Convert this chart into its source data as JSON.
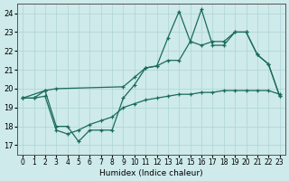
{
  "xlabel": "Humidex (Indice chaleur)",
  "background_color": "#ceeaea",
  "grid_color": "#aed4d4",
  "line_color": "#1a6b5a",
  "xlim": [
    -0.5,
    23.5
  ],
  "ylim": [
    16.5,
    24.5
  ],
  "xticks": [
    0,
    1,
    2,
    3,
    4,
    5,
    6,
    7,
    8,
    9,
    10,
    11,
    12,
    13,
    14,
    15,
    16,
    17,
    18,
    19,
    20,
    21,
    22,
    23
  ],
  "yticks": [
    17,
    18,
    19,
    20,
    21,
    22,
    23,
    24
  ],
  "line_jagged_x": [
    0,
    1,
    2,
    3,
    4,
    5,
    6,
    7,
    8,
    9,
    10,
    11,
    12,
    13,
    14,
    15,
    16,
    17,
    18,
    19,
    20,
    21,
    22,
    23
  ],
  "line_jagged_y": [
    19.5,
    19.5,
    19.9,
    18.0,
    18.0,
    17.2,
    17.8,
    17.8,
    17.8,
    19.5,
    20.2,
    21.1,
    21.2,
    22.7,
    24.1,
    22.5,
    24.2,
    22.3,
    22.3,
    23.0,
    23.0,
    21.8,
    21.3,
    19.6
  ],
  "line_mid_x": [
    0,
    2,
    3,
    9,
    10,
    11,
    12,
    13,
    14,
    15,
    16,
    17,
    18,
    19,
    20,
    21,
    22,
    23
  ],
  "line_mid_y": [
    19.5,
    19.9,
    20.0,
    20.1,
    20.6,
    21.1,
    21.2,
    21.5,
    21.5,
    22.5,
    22.3,
    22.5,
    22.5,
    23.0,
    23.0,
    21.8,
    21.3,
    19.6
  ],
  "line_bottom_x": [
    0,
    1,
    2,
    3,
    4,
    5,
    6,
    7,
    8,
    9,
    10,
    11,
    12,
    13,
    14,
    15,
    16,
    17,
    18,
    19,
    20,
    21,
    22,
    23
  ],
  "line_bottom_y": [
    19.5,
    19.5,
    19.6,
    17.8,
    17.6,
    17.8,
    18.1,
    18.3,
    18.5,
    19.0,
    19.2,
    19.4,
    19.5,
    19.6,
    19.7,
    19.7,
    19.8,
    19.8,
    19.9,
    19.9,
    19.9,
    19.9,
    19.9,
    19.7
  ]
}
